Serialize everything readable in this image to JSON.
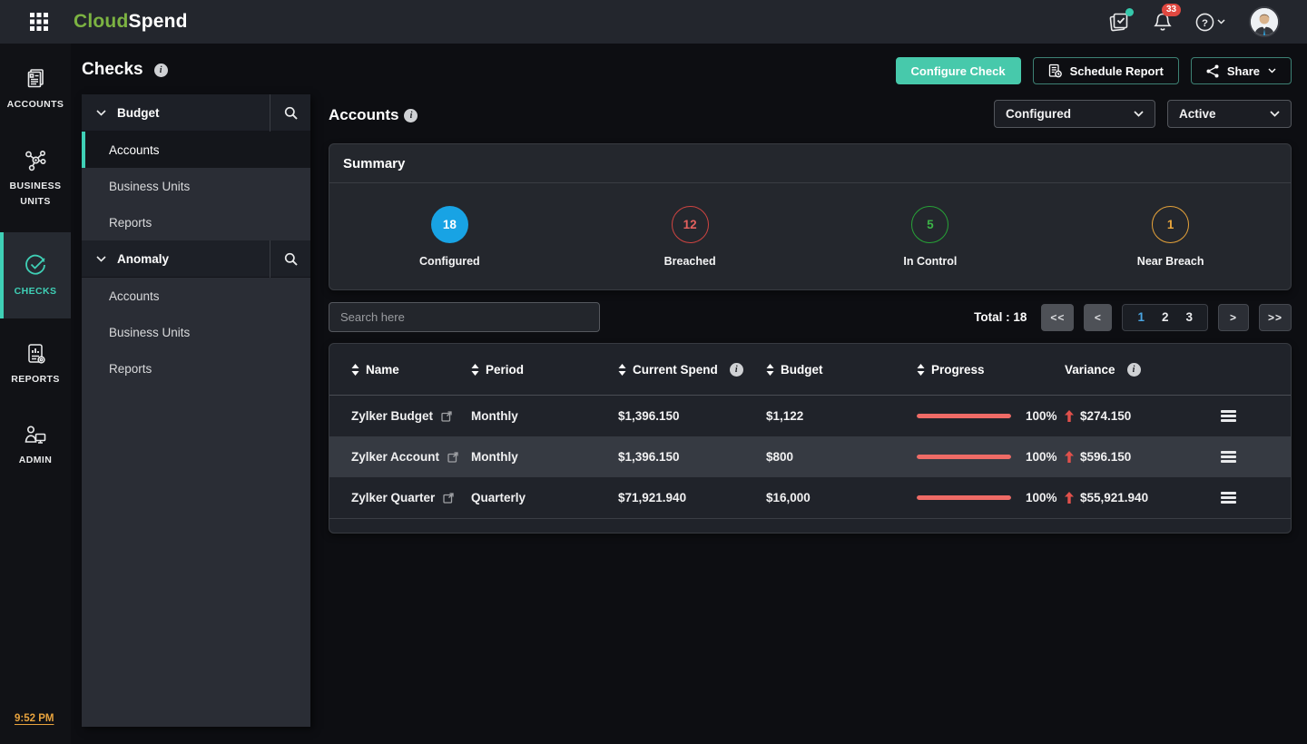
{
  "colors": {
    "accent_teal": "#3fd0b6",
    "brand_green": "#7cb342",
    "configured_blue": "#18a3e4",
    "breached_red": "#cf4441",
    "in_control_green": "#27a237",
    "near_breach_orange": "#e5a23a",
    "progress_bar_red": "#ef6b66",
    "active_page_blue": "#4aa5e2",
    "time_amber": "#e8a33d"
  },
  "topbar": {
    "brand_cloud": "Cloud",
    "brand_spend": "Spend",
    "notification_count": "33"
  },
  "rail": {
    "items": [
      {
        "label": "ACCOUNTS"
      },
      {
        "label": "BUSINESS UNITS"
      },
      {
        "label": "CHECKS"
      },
      {
        "label": "REPORTS"
      },
      {
        "label": "ADMIN"
      }
    ],
    "time": "9:52 PM"
  },
  "panel": {
    "title": "Checks",
    "sections": [
      {
        "label": "Budget",
        "items": [
          "Accounts",
          "Business Units",
          "Reports"
        ]
      },
      {
        "label": "Anomaly",
        "items": [
          "Accounts",
          "Business Units",
          "Reports"
        ]
      }
    ]
  },
  "actions": {
    "configure": "Configure Check",
    "schedule": "Schedule Report",
    "share": "Share"
  },
  "main": {
    "title": "Accounts",
    "filters": {
      "status": "Configured",
      "state": "Active"
    },
    "summary": {
      "title": "Summary",
      "stats": [
        {
          "value": "18",
          "label": "Configured"
        },
        {
          "value": "12",
          "label": "Breached"
        },
        {
          "value": "5",
          "label": "In Control"
        },
        {
          "value": "1",
          "label": "Near Breach"
        }
      ]
    },
    "search_placeholder": "Search here",
    "pagination": {
      "total": "Total : 18",
      "first": "<<",
      "prev": "<",
      "pages": [
        "1",
        "2",
        "3"
      ],
      "active_page": "1",
      "next": ">",
      "last": ">>"
    },
    "table": {
      "columns": {
        "name": "Name",
        "period": "Period",
        "current_spend": "Current Spend",
        "budget": "Budget",
        "progress": "Progress",
        "variance": "Variance"
      },
      "rows": [
        {
          "name": "Zylker Budget",
          "period": "Monthly",
          "current_spend": "$1,396.150",
          "budget": "$1,122",
          "progress": "100%",
          "variance": "$274.150"
        },
        {
          "name": "Zylker Account",
          "period": "Monthly",
          "current_spend": "$1,396.150",
          "budget": "$800",
          "progress": "100%",
          "variance": "$596.150"
        },
        {
          "name": "Zylker Quarter",
          "period": "Quarterly",
          "current_spend": "$71,921.940",
          "budget": "$16,000",
          "progress": "100%",
          "variance": "$55,921.940"
        }
      ]
    }
  }
}
